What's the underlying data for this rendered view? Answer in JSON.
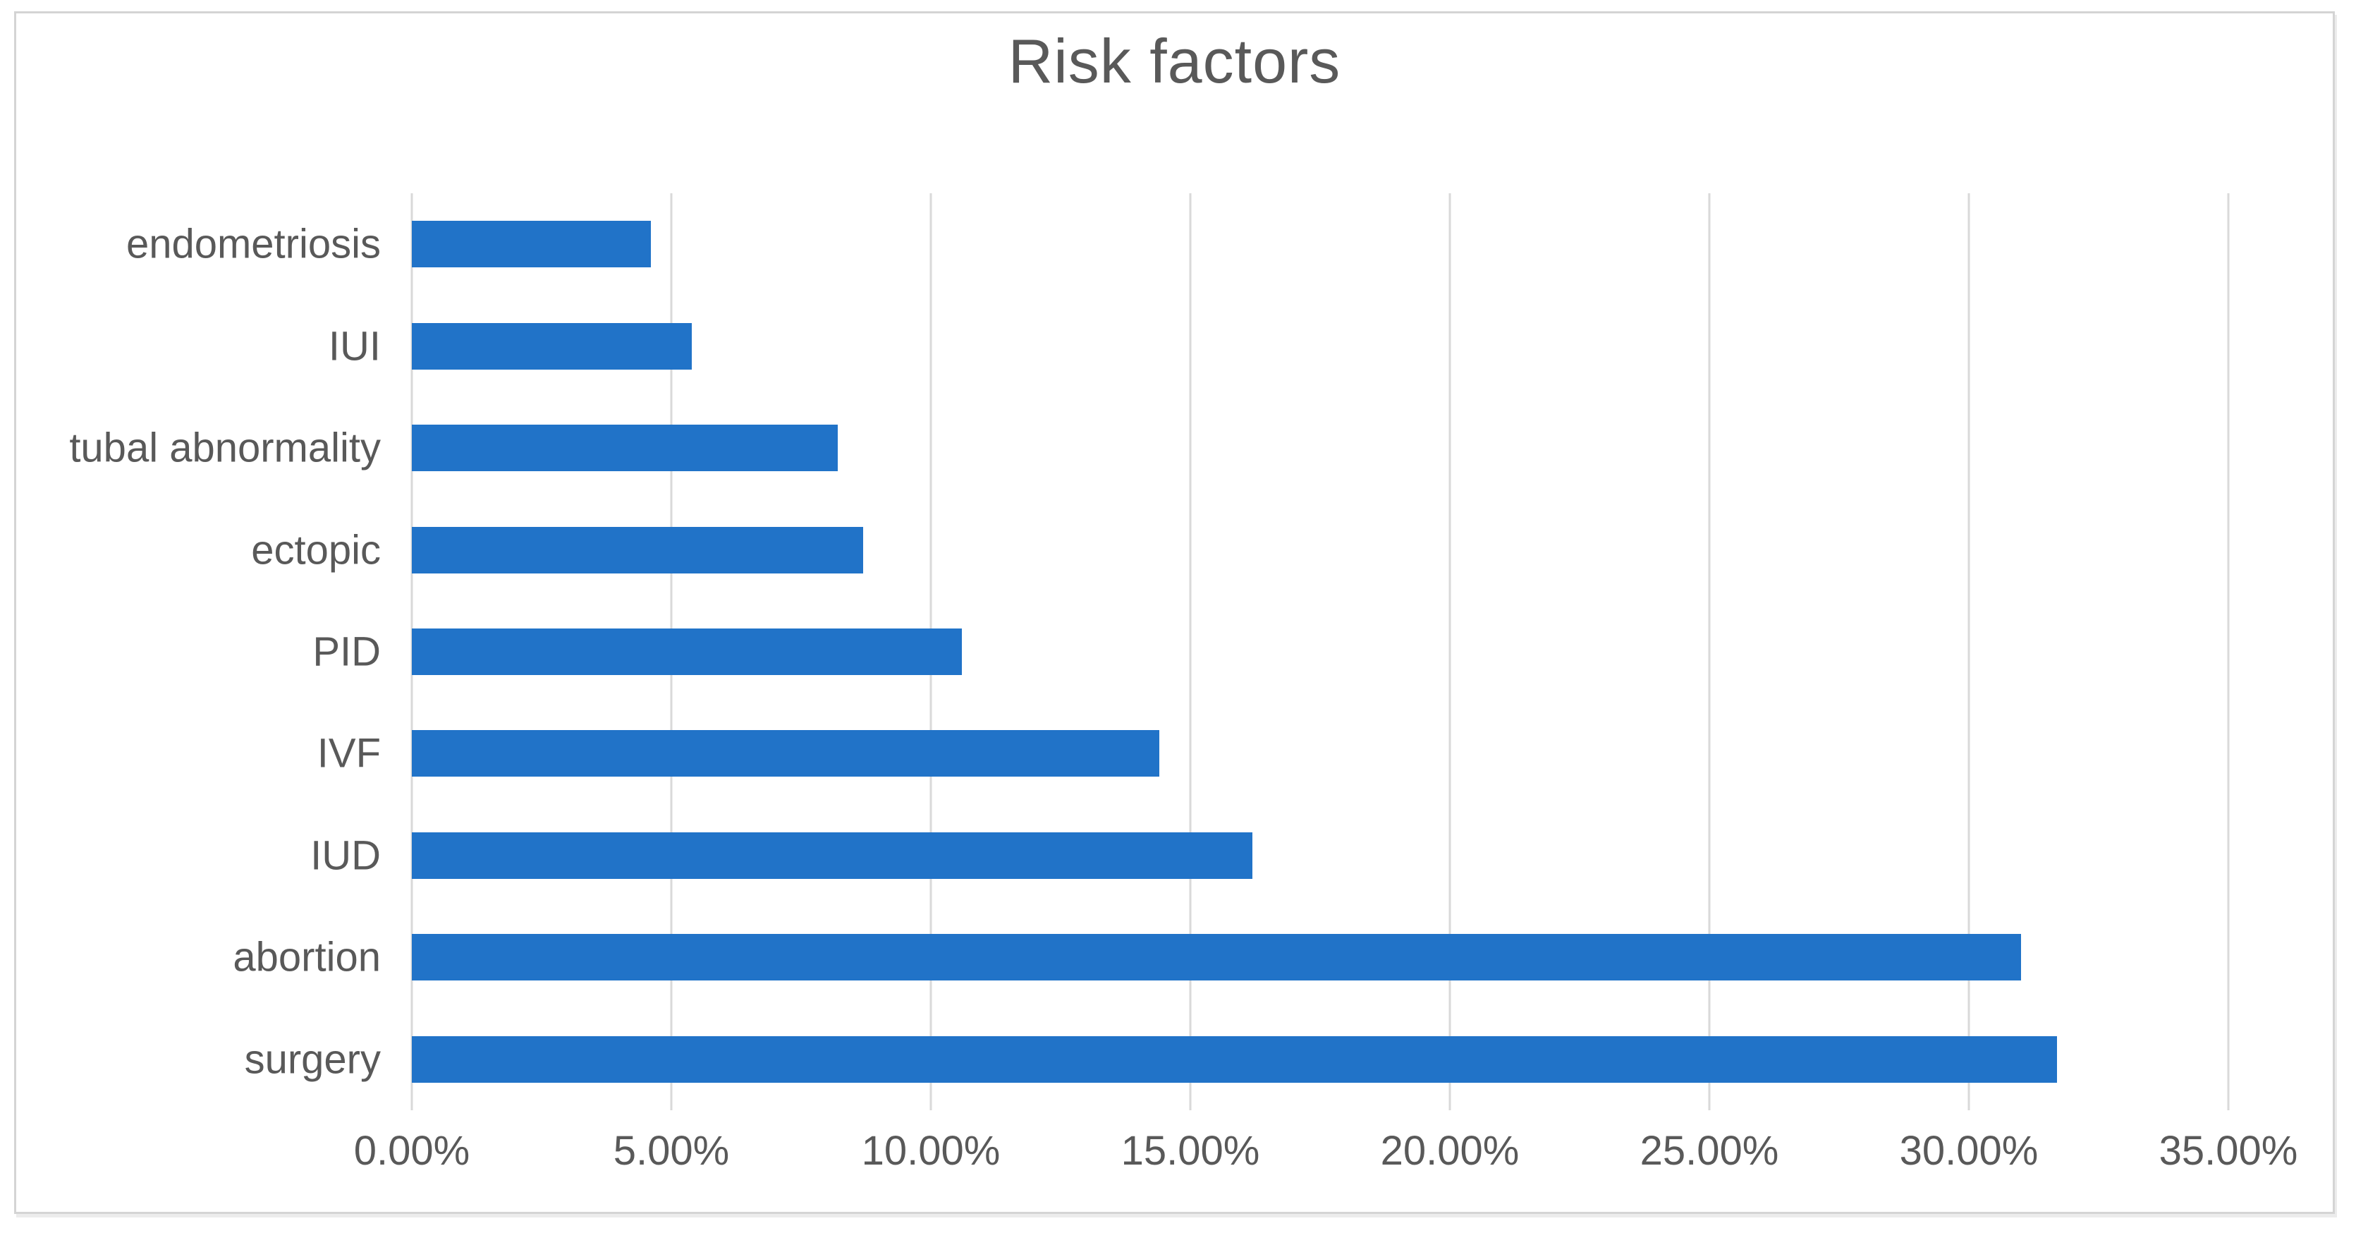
{
  "title": "Risk factors",
  "chart_data": {
    "type": "bar",
    "orientation": "horizontal",
    "title": "Risk factors",
    "categories": [
      "endometriosis",
      "IUI",
      "tubal abnormality",
      "ectopic",
      "PID",
      "IVF",
      "IUD",
      "abortion",
      "surgery"
    ],
    "values": [
      4.6,
      5.4,
      8.2,
      8.7,
      10.6,
      14.4,
      16.2,
      31.0,
      31.7
    ],
    "unit": "%",
    "xlabel": "",
    "ylabel": "",
    "x_ticks": [
      "0.00%",
      "5.00%",
      "10.00%",
      "15.00%",
      "20.00%",
      "25.00%",
      "30.00%",
      "35.00%"
    ],
    "xlim": [
      0,
      35
    ],
    "gridlines": "vertical",
    "legend": "none",
    "bar_color": "#2173c8",
    "gridline_color": "#d9d9d9",
    "text_color": "#595959",
    "frame_border_color": "#d4d4d4"
  }
}
